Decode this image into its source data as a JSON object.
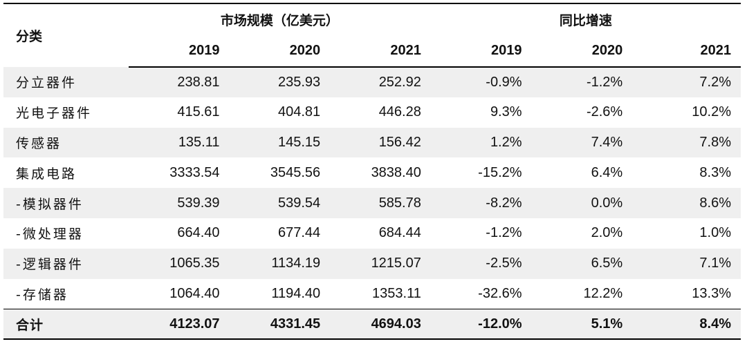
{
  "table": {
    "category_header": "分类",
    "group_market": "市场规模（亿美元）",
    "group_growth": "同比增速",
    "years": [
      "2019",
      "2020",
      "2021",
      "2019",
      "2020",
      "2021"
    ],
    "rows": [
      {
        "name": "分立器件",
        "values": [
          "238.81",
          "235.93",
          "252.92",
          "-0.9%",
          "-1.2%",
          "7.2%"
        ]
      },
      {
        "name": "光电子器件",
        "values": [
          "415.61",
          "404.81",
          "446.28",
          "9.3%",
          "-2.6%",
          "10.2%"
        ]
      },
      {
        "name": "传感器",
        "values": [
          "135.11",
          "145.15",
          "156.42",
          "1.2%",
          "7.4%",
          "7.8%"
        ]
      },
      {
        "name": "集成电路",
        "values": [
          "3333.54",
          "3545.56",
          "3838.40",
          "-15.2%",
          "6.4%",
          "8.3%"
        ]
      },
      {
        "name": "-模拟器件",
        "values": [
          "539.39",
          "539.54",
          "585.78",
          "-8.2%",
          "0.0%",
          "8.6%"
        ]
      },
      {
        "name": "-微处理器",
        "values": [
          "664.40",
          "677.44",
          "684.44",
          "-1.2%",
          "2.0%",
          "1.0%"
        ]
      },
      {
        "name": "-逻辑器件",
        "values": [
          "1065.35",
          "1134.19",
          "1215.07",
          "-2.5%",
          "6.5%",
          "7.1%"
        ]
      },
      {
        "name": "-存储器",
        "values": [
          "1064.40",
          "1194.40",
          "1353.11",
          "-32.6%",
          "12.2%",
          "13.3%"
        ]
      }
    ],
    "total": {
      "name": "合计",
      "values": [
        "4123.07",
        "4331.45",
        "4694.03",
        "-12.0%",
        "5.1%",
        "8.4%"
      ]
    }
  },
  "colors": {
    "shade": "#efefef",
    "rule": "#000000",
    "text": "#111111"
  }
}
